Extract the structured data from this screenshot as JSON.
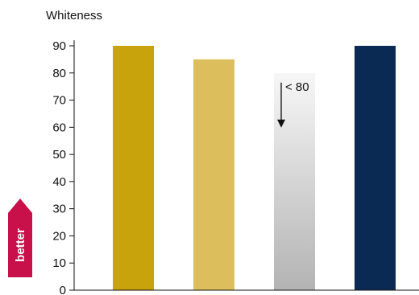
{
  "chart_data": {
    "type": "bar",
    "title": "",
    "xlabel": "",
    "ylabel": "Whiteness",
    "ylim": [
      0,
      90
    ],
    "yticks": [
      0,
      10,
      20,
      30,
      40,
      50,
      60,
      70,
      80,
      90
    ],
    "categories": [
      "",
      "",
      "",
      ""
    ],
    "values": [
      90,
      85,
      80,
      90
    ],
    "bar_colors": [
      "#c9a30c",
      "#dcbf5c",
      "gradient",
      "#0a2a54"
    ],
    "gradient_colors": [
      "#f7f7f7",
      "#b3b3b3"
    ],
    "annotation": {
      "text": "< 80",
      "bar_index": 2
    },
    "better_label": "better",
    "better_color": "#c8104a",
    "grid": false
  }
}
